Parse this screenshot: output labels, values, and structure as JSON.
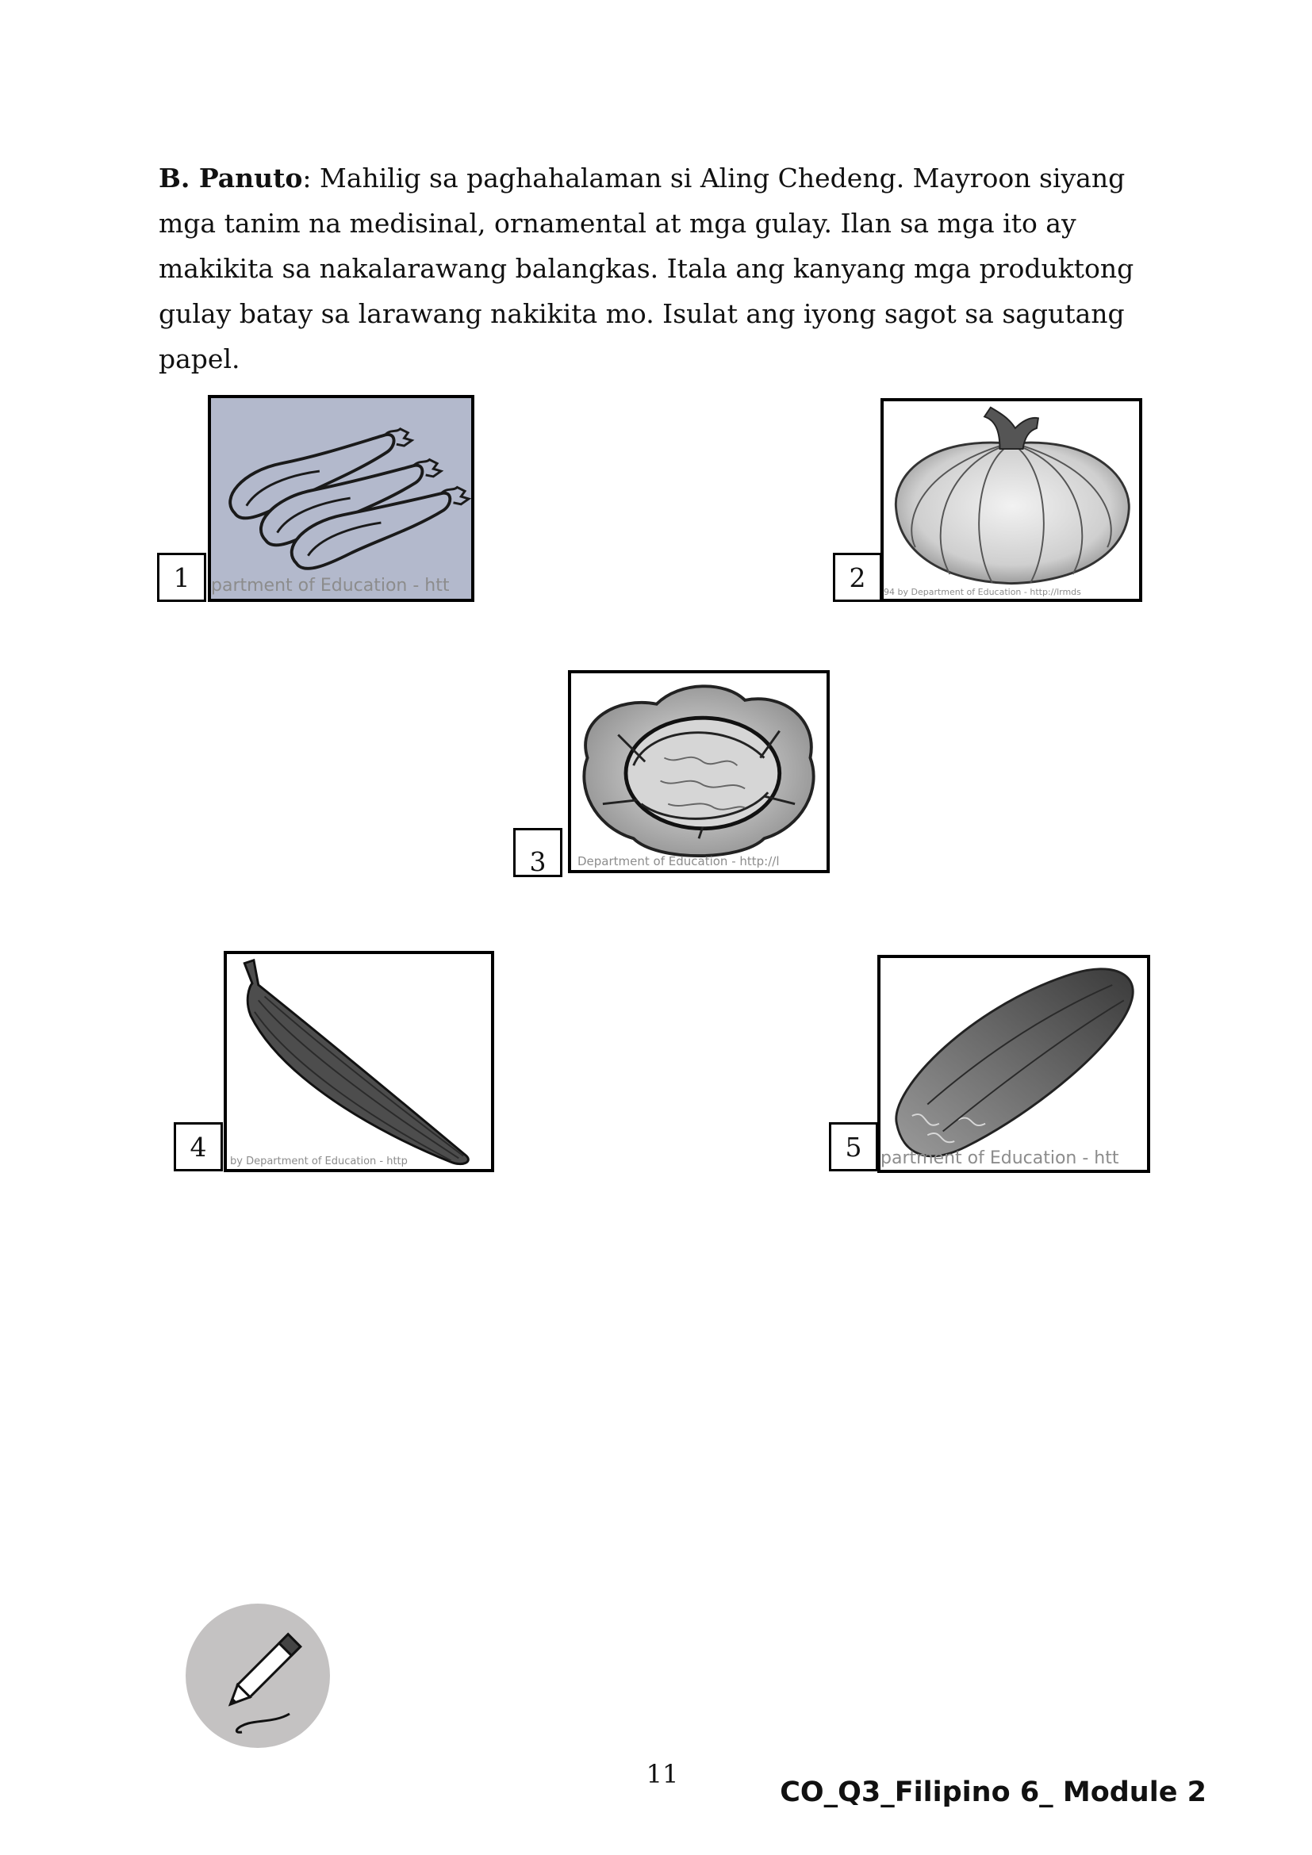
{
  "instructions": {
    "label": "B. Panuto",
    "text": ": Mahilig sa paghahalaman si Aling Chedeng. Mayroon siyang mga tanim na medisinal, ornamental at mga gulay. Ilan sa mga ito ay makikita sa nakalarawang balangkas. Itala ang kanyang mga produktong gulay batay sa larawang nakikita mo. Isulat ang iyong sagot sa sagutang papel."
  },
  "images": [
    {
      "number": "1",
      "subject": "talong",
      "watermark": "partment of Education - htt"
    },
    {
      "number": "2",
      "subject": "kalabasa",
      "watermark": "94 by Department of Education - http://lrmds"
    },
    {
      "number": "3",
      "subject": "repolyo",
      "watermark": "Department of Education - http://l"
    },
    {
      "number": "4",
      "subject": "patola",
      "watermark": "by Department of Education - http"
    },
    {
      "number": "5",
      "subject": "pipino",
      "watermark": "partment of Education - htt"
    }
  ],
  "icons": {
    "activity": "pencil-icon"
  },
  "colors": {
    "image1_bg": "#b3b9cc",
    "badge": "#c4c2c2",
    "ink": "#111111"
  },
  "page_number": "11",
  "footer": "CO_Q3_Filipino 6_ Module 2"
}
